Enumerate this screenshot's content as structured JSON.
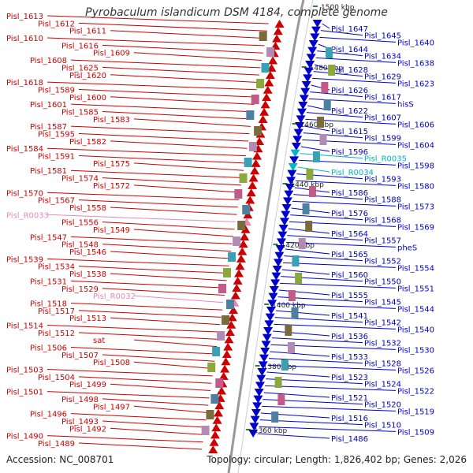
{
  "title": "Pyrobaculum islandicum DSM 4184, complete genome",
  "footer": {
    "accession": "Accession: NC_008701",
    "summary": "Topology: circular; Length: 1,826,402 bp; Genes: 2,026"
  },
  "colors": {
    "forward": "#cc0000",
    "reverse": "#0000cc",
    "trna": "#e38bb6",
    "rrna": "#00b6c8",
    "backbone": "#999999",
    "tick": "#2a8a2a",
    "tick_label": "#222222"
  },
  "ticks": [
    "1500 kbp",
    "1480 kbp",
    "1460 kbp",
    "1440 kbp",
    "1420 kbp",
    "1400 kbp",
    "1380 kbp",
    "1360 kbp"
  ],
  "left_labels": [
    "Pisl_1613",
    "Pisl_1612",
    "Pisl_1611",
    "Pisl_1610",
    "Pisl_1616",
    "Pisl_1609",
    "Pisl_1608",
    "Pisl_1625",
    "Pisl_1620",
    "Pisl_1618",
    "Pisl_1589",
    "Pisl_1600",
    "Pisl_1601",
    "Pisl_1585",
    "Pisl_1583",
    "Pisl_1587",
    "Pisl_1595",
    "Pisl_1582",
    "Pisl_1584",
    "Pisl_1591",
    "Pisl_1575",
    "Pisl_1581",
    "Pisl_1574",
    "Pisl_1572",
    "Pisl_1570",
    "Pisl_1567",
    "Pisl_1558",
    "Pisl_R0033",
    "Pisl_1556",
    "Pisl_1549",
    "Pisl_1547",
    "Pisl_1548",
    "Pisl_1546",
    "Pisl_1539",
    "Pisl_1534",
    "Pisl_1538",
    "Pisl_1531",
    "Pisl_1529",
    "Pisl_R0032",
    "Pisl_1518",
    "Pisl_1517",
    "Pisl_1513",
    "Pisl_1514",
    "Pisl_1512",
    "sat",
    "Pisl_1506",
    "Pisl_1507",
    "Pisl_1508",
    "Pisl_1503",
    "Pisl_1504",
    "Pisl_1499",
    "Pisl_1501",
    "Pisl_1498",
    "Pisl_1497",
    "Pisl_1496",
    "Pisl_1493",
    "Pisl_1492",
    "Pisl_1490",
    "Pisl_1489"
  ],
  "right_labels": [
    "Pisl_1647",
    "Pisl_1645",
    "Pisl_1640",
    "Pisl_1644",
    "Pisl_1634",
    "Pisl_1638",
    "Pisl_1628",
    "Pisl_1629",
    "Pisl_1623",
    "Pisl_1626",
    "Pisl_1617",
    "hisS",
    "Pisl_1622",
    "Pisl_1607",
    "Pisl_1606",
    "Pisl_1615",
    "Pisl_1599",
    "Pisl_1604",
    "Pisl_1596",
    "Pisl_R0035",
    "Pisl_1598",
    "Pisl_R0034",
    "Pisl_1593",
    "Pisl_1580",
    "Pisl_1586",
    "Pisl_1588",
    "Pisl_1573",
    "Pisl_1576",
    "Pisl_1568",
    "Pisl_1569",
    "Pisl_1564",
    "Pisl_1557",
    "pheS",
    "Pisl_1565",
    "Pisl_1552",
    "Pisl_1554",
    "Pisl_1560",
    "Pisl_1550",
    "Pisl_1551",
    "Pisl_1555",
    "Pisl_1545",
    "Pisl_1544",
    "Pisl_1541",
    "Pisl_1542",
    "Pisl_1540",
    "Pisl_1536",
    "Pisl_1532",
    "Pisl_1530",
    "Pisl_1533",
    "Pisl_1528",
    "Pisl_1526",
    "Pisl_1523",
    "Pisl_1524",
    "Pisl_1522",
    "Pisl_1521",
    "Pisl_1520",
    "Pisl_1519",
    "Pisl_1516",
    "Pisl_1510",
    "Pisl_1509",
    "Pisl_1486"
  ]
}
